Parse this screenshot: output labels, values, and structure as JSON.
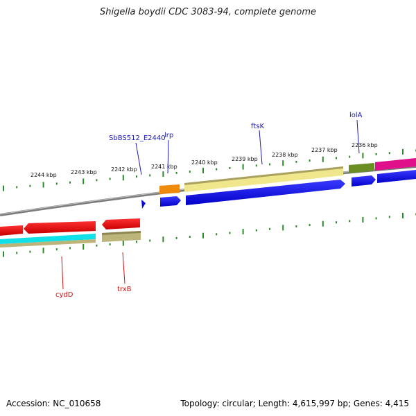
{
  "title": "Shigella boydii CDC 3083-94, complete genome",
  "footer": {
    "accession": "Accession: NC_010658",
    "stats": "Topology: circular; Length: 4,615,997 bp; Genes: 4,415"
  },
  "kbp_labels": [
    "2244 kbp",
    "2243 kbp",
    "2242 kbp",
    "2241 kbp",
    "2240 kbp",
    "2239 kbp",
    "2238 kbp",
    "2237 kbp",
    "2236 kbp"
  ],
  "genes_top": [
    "SbBS512_E2440",
    "lrp",
    "ftsK",
    "lolA"
  ],
  "genes_bottom": [
    "cydD",
    "trxB"
  ],
  "colors": {
    "backbone": "#8a8a8a",
    "ticks": "#2a8a2a",
    "blue": "#0a0ad8",
    "red": "#e01010",
    "cyan": "#10e0e8",
    "khaki": "#bdb47a",
    "pale_yellow": "#f0e68c",
    "orange": "#f08a0a",
    "olive": "#6b8e23",
    "magenta": "#e0108a"
  }
}
